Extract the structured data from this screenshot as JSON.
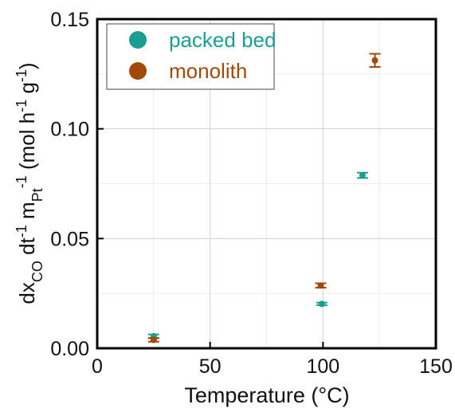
{
  "chart_data": {
    "type": "scatter",
    "title": "",
    "xlabel": "Temperature (°C)",
    "ylabel": {
      "parts": [
        {
          "text": "dx",
          "shift": "base"
        },
        {
          "text": "CO",
          "shift": "sub"
        },
        {
          "text": " dt",
          "shift": "base"
        },
        {
          "text": "-1",
          "shift": "sup"
        },
        {
          "text": " m",
          "shift": "base"
        },
        {
          "text": "Pt",
          "shift": "sub"
        },
        {
          "text": "-1",
          "shift": "sup"
        },
        {
          "text": "  (mol h",
          "shift": "base"
        },
        {
          "text": "-1",
          "shift": "sup"
        },
        {
          "text": " g",
          "shift": "base"
        },
        {
          "text": "-1",
          "shift": "sup"
        },
        {
          "text": ")",
          "shift": "base"
        }
      ]
    },
    "xlim": [
      0,
      150
    ],
    "ylim": [
      0,
      0.15
    ],
    "xticks": [
      0,
      50,
      100,
      150
    ],
    "yticks": [
      0.0,
      0.05,
      0.1,
      0.15
    ],
    "xtick_labels": [
      "0",
      "50",
      "100",
      "150"
    ],
    "ytick_labels": [
      "0.00",
      "0.05",
      "0.10",
      "0.15"
    ],
    "grid": true,
    "minor_grid": true,
    "legend_position": "top-left",
    "series": [
      {
        "name": "packed bed",
        "color": "#1a9e91",
        "marker": "circle",
        "points": [
          {
            "x": 25,
            "y": 0.0055,
            "yerr": 0.0008
          },
          {
            "x": 99.5,
            "y": 0.0202,
            "yerr": 0.0006
          },
          {
            "x": 117.5,
            "y": 0.0788,
            "yerr": 0.0012
          }
        ]
      },
      {
        "name": "monolith",
        "color": "#a24808",
        "marker": "circle",
        "points": [
          {
            "x": 25,
            "y": 0.0038,
            "yerr": 0.0008
          },
          {
            "x": 99,
            "y": 0.0286,
            "yerr": 0.001
          },
          {
            "x": 123,
            "y": 0.1312,
            "yerr": 0.003
          }
        ]
      }
    ]
  }
}
